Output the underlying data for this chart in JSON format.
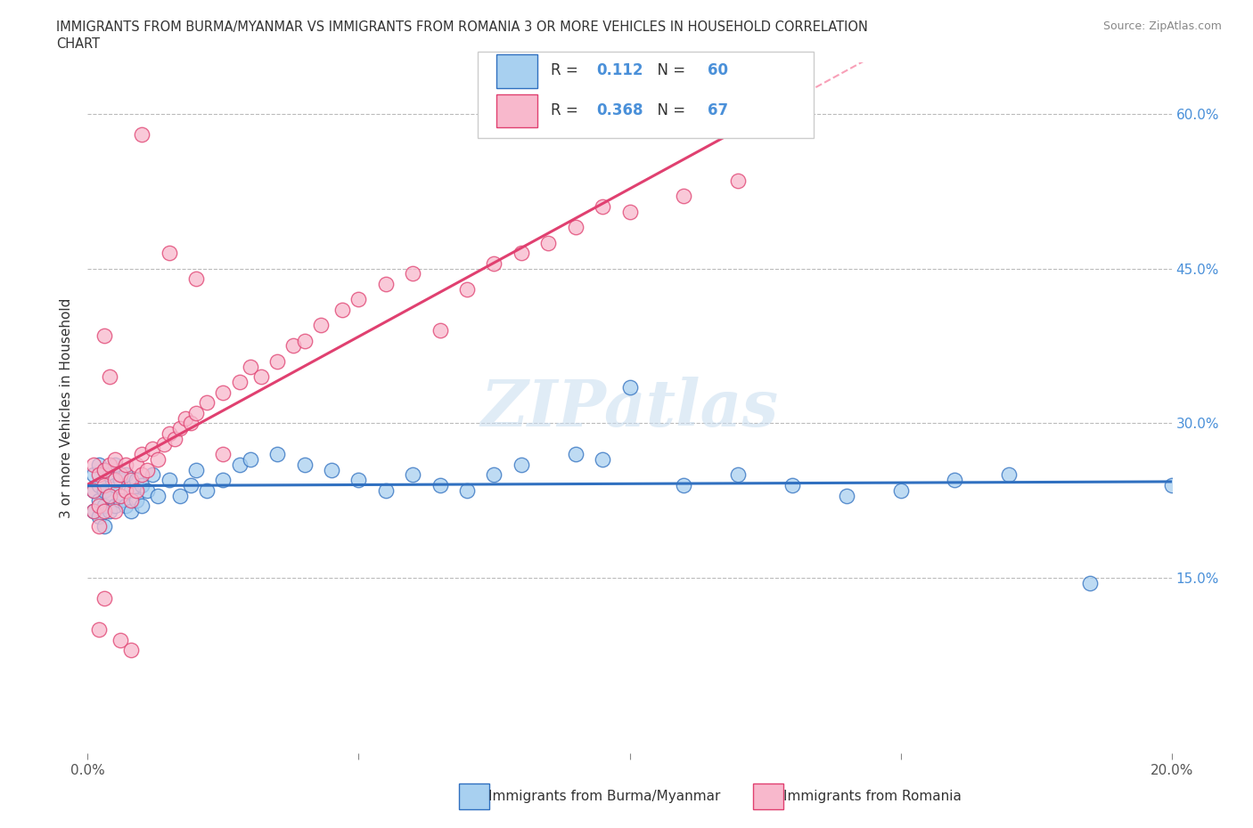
{
  "title_line1": "IMMIGRANTS FROM BURMA/MYANMAR VS IMMIGRANTS FROM ROMANIA 3 OR MORE VEHICLES IN HOUSEHOLD CORRELATION",
  "title_line2": "CHART",
  "source": "Source: ZipAtlas.com",
  "ylabel": "3 or more Vehicles in Household",
  "R_burma": 0.112,
  "N_burma": 60,
  "R_romania": 0.368,
  "N_romania": 67,
  "color_burma": "#a8d0f0",
  "color_romania": "#f8b8cc",
  "trendline_burma": "#3070c0",
  "trendline_romania": "#e04070",
  "trendline_romania_dashed": "#f8a0b8",
  "xlim": [
    0.0,
    0.2
  ],
  "ylim": [
    -0.02,
    0.65
  ],
  "ytick_positions": [
    0.15,
    0.3,
    0.45,
    0.6
  ],
  "ytick_labels": [
    "15.0%",
    "30.0%",
    "45.0%",
    "60.0%"
  ],
  "watermark": "ZIPatlas",
  "legend_label_burma": "Immigrants from Burma/Myanmar",
  "legend_label_romania": "Immigrants from Romania",
  "burma_x": [
    0.001,
    0.001,
    0.001,
    0.002,
    0.002,
    0.002,
    0.002,
    0.003,
    0.003,
    0.003,
    0.003,
    0.004,
    0.004,
    0.004,
    0.005,
    0.005,
    0.005,
    0.006,
    0.006,
    0.007,
    0.007,
    0.008,
    0.008,
    0.009,
    0.009,
    0.01,
    0.01,
    0.011,
    0.012,
    0.013,
    0.015,
    0.017,
    0.019,
    0.02,
    0.022,
    0.025,
    0.028,
    0.03,
    0.035,
    0.04,
    0.045,
    0.05,
    0.055,
    0.06,
    0.065,
    0.07,
    0.075,
    0.08,
    0.09,
    0.095,
    0.1,
    0.11,
    0.12,
    0.13,
    0.14,
    0.15,
    0.16,
    0.17,
    0.185,
    0.2
  ],
  "burma_y": [
    0.215,
    0.235,
    0.25,
    0.21,
    0.225,
    0.24,
    0.26,
    0.2,
    0.22,
    0.235,
    0.255,
    0.215,
    0.23,
    0.25,
    0.22,
    0.24,
    0.26,
    0.225,
    0.245,
    0.22,
    0.25,
    0.215,
    0.235,
    0.225,
    0.245,
    0.22,
    0.24,
    0.235,
    0.25,
    0.23,
    0.245,
    0.23,
    0.24,
    0.255,
    0.235,
    0.245,
    0.26,
    0.265,
    0.27,
    0.26,
    0.255,
    0.245,
    0.235,
    0.25,
    0.24,
    0.235,
    0.25,
    0.26,
    0.27,
    0.265,
    0.335,
    0.24,
    0.25,
    0.24,
    0.23,
    0.235,
    0.245,
    0.25,
    0.145,
    0.24
  ],
  "romania_x": [
    0.001,
    0.001,
    0.001,
    0.002,
    0.002,
    0.002,
    0.003,
    0.003,
    0.003,
    0.004,
    0.004,
    0.005,
    0.005,
    0.005,
    0.006,
    0.006,
    0.007,
    0.007,
    0.008,
    0.008,
    0.009,
    0.009,
    0.01,
    0.01,
    0.011,
    0.012,
    0.013,
    0.014,
    0.015,
    0.016,
    0.017,
    0.018,
    0.019,
    0.02,
    0.022,
    0.025,
    0.028,
    0.03,
    0.032,
    0.035,
    0.038,
    0.04,
    0.043,
    0.047,
    0.05,
    0.055,
    0.06,
    0.065,
    0.07,
    0.075,
    0.08,
    0.085,
    0.09,
    0.095,
    0.1,
    0.11,
    0.12,
    0.003,
    0.004,
    0.006,
    0.008,
    0.01,
    0.015,
    0.02,
    0.025,
    0.002,
    0.003
  ],
  "romania_y": [
    0.215,
    0.235,
    0.26,
    0.22,
    0.25,
    0.2,
    0.24,
    0.215,
    0.255,
    0.23,
    0.26,
    0.245,
    0.215,
    0.265,
    0.23,
    0.25,
    0.235,
    0.26,
    0.225,
    0.245,
    0.26,
    0.235,
    0.25,
    0.27,
    0.255,
    0.275,
    0.265,
    0.28,
    0.29,
    0.285,
    0.295,
    0.305,
    0.3,
    0.31,
    0.32,
    0.33,
    0.34,
    0.355,
    0.345,
    0.36,
    0.375,
    0.38,
    0.395,
    0.41,
    0.42,
    0.435,
    0.445,
    0.39,
    0.43,
    0.455,
    0.465,
    0.475,
    0.49,
    0.51,
    0.505,
    0.52,
    0.535,
    0.385,
    0.345,
    0.09,
    0.08,
    0.58,
    0.465,
    0.44,
    0.27,
    0.1,
    0.13
  ]
}
